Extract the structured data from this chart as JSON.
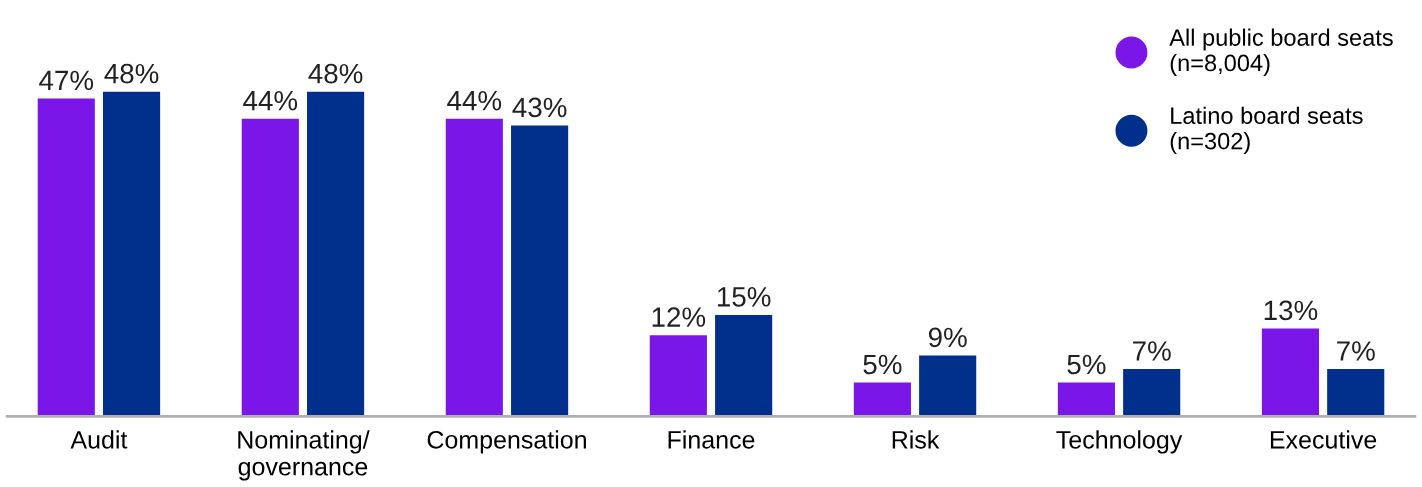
{
  "chart_data": {
    "type": "bar",
    "categories": [
      "Audit",
      "Nominating/\ngovernance",
      "Compensation",
      "Finance",
      "Risk",
      "Technology",
      "Executive"
    ],
    "series": [
      {
        "name": "All public board seats\n(n=8,004)",
        "color": "#7a16e8",
        "values": [
          47,
          44,
          44,
          12,
          5,
          5,
          13
        ],
        "value_labels": [
          "47%",
          "44%",
          "44%",
          "12%",
          "5%",
          "5%",
          "13%"
        ]
      },
      {
        "name": "Latino board seats\n(n=302)",
        "color": "#00308c",
        "values": [
          48,
          48,
          43,
          15,
          9,
          7,
          7
        ],
        "value_labels": [
          "48%",
          "48%",
          "43%",
          "15%",
          "9%",
          "7%",
          "7%"
        ]
      }
    ],
    "legend": "top right",
    "grid": false
  }
}
